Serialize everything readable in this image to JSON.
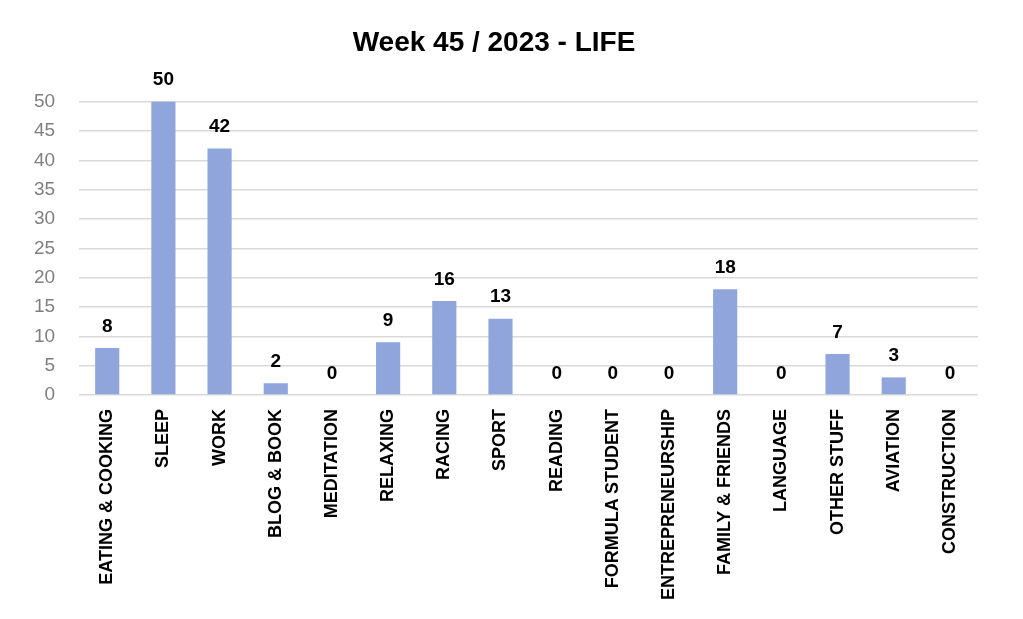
{
  "chart_data": {
    "type": "bar",
    "title": "Week 45 / 2023 - LIFE",
    "categories": [
      "EATING & COOKING",
      "SLEEP",
      "WORK",
      "BLOG & BOOK",
      "MEDITATION",
      "RELAXING",
      "RACING",
      "SPORT",
      "READING",
      "FORMULA STUDENT",
      "ENTREPRENEURSHIP",
      "FAMILY & FRIENDS",
      "LANGUAGE",
      "OTHER STUFF",
      "AVIATION",
      "CONSTRUCTION"
    ],
    "values": [
      8,
      50,
      42,
      2,
      0,
      9,
      16,
      13,
      0,
      0,
      0,
      18,
      0,
      7,
      3,
      0
    ],
    "color": "#8fa5dc",
    "ylim": [
      0,
      50
    ],
    "yticks": [
      0,
      5,
      10,
      15,
      20,
      25,
      30,
      35,
      40,
      45,
      50
    ],
    "grid": "y",
    "data_labels": true,
    "legend": false
  }
}
